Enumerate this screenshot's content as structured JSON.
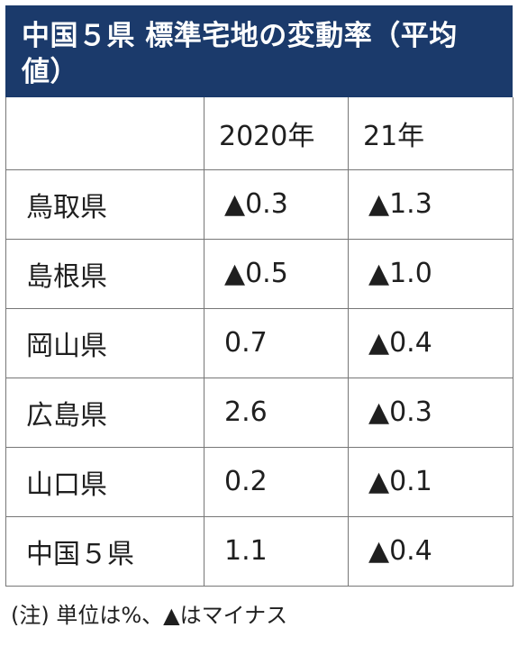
{
  "title": "中国５県 標準宅地の変動率（平均値）",
  "chart_data": {
    "type": "table",
    "columns": [
      "",
      "2020年",
      "21年"
    ],
    "rows": [
      {
        "name": "鳥取県",
        "y2020": "▲0.3",
        "y2021": "▲1.3"
      },
      {
        "name": "島根県",
        "y2020": "▲0.5",
        "y2021": "▲1.0"
      },
      {
        "name": "岡山県",
        "y2020": "0.7",
        "y2021": "▲0.4"
      },
      {
        "name": "広島県",
        "y2020": "2.6",
        "y2021": "▲0.3"
      },
      {
        "name": "山口県",
        "y2020": "0.2",
        "y2021": "▲0.1"
      },
      {
        "name": "中国５県",
        "y2020": "1.1",
        "y2021": "▲0.4"
      }
    ]
  },
  "note": "(注) 単位は%、▲はマイナス",
  "colors": {
    "title_bg": "#1b3a6b",
    "title_text": "#ffffff",
    "border": "#777777"
  }
}
